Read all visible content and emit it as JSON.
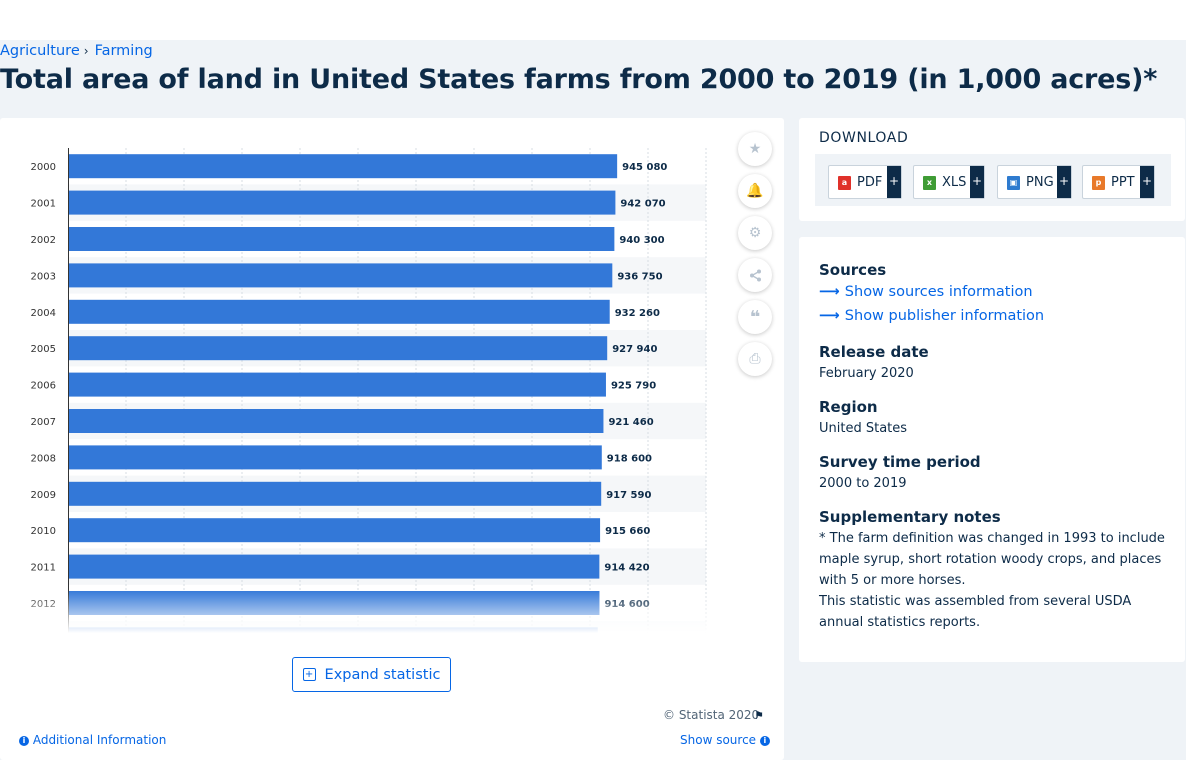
{
  "breadcrumb": {
    "items": [
      "Agriculture",
      "Farming"
    ]
  },
  "page_title": "Total area of land in United States farms from 2000 to 2019 (in 1,000 acres)*",
  "chart_data": {
    "type": "bar",
    "orientation": "horizontal",
    "categories": [
      "2000",
      "2001",
      "2002",
      "2003",
      "2004",
      "2005",
      "2006",
      "2007",
      "2008",
      "2009",
      "2010",
      "2011",
      "2012"
    ],
    "values": [
      945080,
      942070,
      940300,
      936750,
      932260,
      927940,
      925790,
      921460,
      918600,
      917590,
      915660,
      914420,
      914600
    ],
    "value_labels": [
      "945 080",
      "942 070",
      "940 300",
      "936 750",
      "932 260",
      "927 940",
      "925 790",
      "921 460",
      "918 600",
      "917 590",
      "915 660",
      "914 420",
      "914 600"
    ],
    "xlim": [
      0,
      1100000
    ],
    "grid": true,
    "bar_color": "#3378d8"
  },
  "toolbar": {
    "icons": [
      "star-icon",
      "bell-icon",
      "gear-icon",
      "share-icon",
      "quote-icon",
      "print-icon"
    ]
  },
  "expand": {
    "label": "Expand statistic"
  },
  "footer": {
    "copyright": "© Statista 2020",
    "additional_info": "Additional Information",
    "show_source": "Show source"
  },
  "download": {
    "heading": "DOWNLOAD",
    "buttons": [
      {
        "label": "PDF",
        "color": "#e0312a"
      },
      {
        "label": "XLS",
        "color": "#3f9c35"
      },
      {
        "label": "PNG",
        "color": "#2e7bcf"
      },
      {
        "label": "PPT",
        "color": "#e8792a"
      }
    ],
    "plus": "+"
  },
  "info": {
    "sources_heading": "Sources",
    "sources_link": "Show sources information",
    "publisher_link": "Show publisher information",
    "release_heading": "Release date",
    "release_value": "February 2020",
    "region_heading": "Region",
    "region_value": "United States",
    "survey_heading": "Survey time period",
    "survey_value": "2000 to 2019",
    "notes_heading": "Supplementary notes",
    "notes_value_1": "* The farm definition was changed in 1993 to include maple syrup, short rotation woody crops, and places with 5 or more horses.",
    "notes_value_2": "This statistic was assembled from several USDA annual statistics reports."
  }
}
